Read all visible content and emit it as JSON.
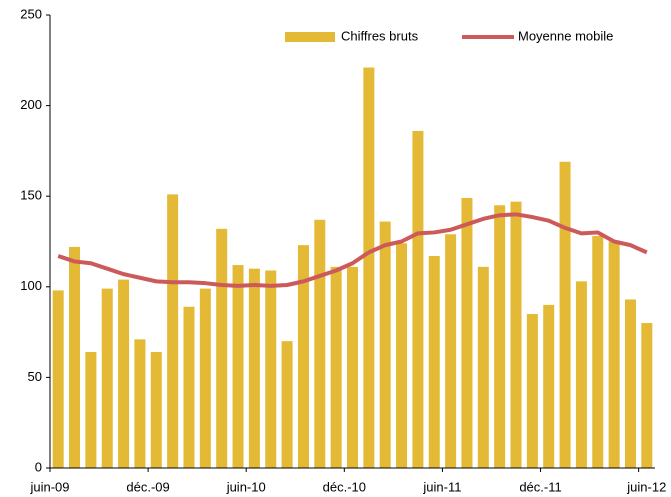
{
  "chart_data": {
    "type": "bar_line",
    "categories": [
      "juin-09",
      null,
      null,
      null,
      null,
      null,
      "déc.-09",
      null,
      null,
      null,
      null,
      null,
      "juin-10",
      null,
      null,
      null,
      null,
      null,
      "déc.-10",
      null,
      null,
      null,
      null,
      null,
      "juin-11",
      null,
      null,
      null,
      null,
      null,
      "déc.-11",
      null,
      null,
      null,
      null,
      null,
      "juin-12"
    ],
    "series": [
      {
        "name": "Chiffres bruts",
        "color": "#e3b935",
        "kind": "bar",
        "values": [
          98,
          122,
          64,
          99,
          104,
          71,
          64,
          151,
          89,
          99,
          132,
          112,
          110,
          109,
          70,
          123,
          137,
          111,
          111,
          221,
          136,
          124,
          186,
          117,
          129,
          149,
          111,
          145,
          147,
          85,
          90,
          169,
          103,
          128,
          125,
          93,
          80
        ]
      },
      {
        "name": "Moyenne mobile",
        "color": "#cd5a5a",
        "kind": "line",
        "values": [
          117,
          114,
          113,
          110,
          107,
          105,
          103,
          102.5,
          102.5,
          102,
          101,
          100.5,
          101,
          100.5,
          101,
          103,
          106,
          109,
          113,
          119,
          123,
          125,
          129.5,
          130,
          131.5,
          134.5,
          137.5,
          139.5,
          140,
          138.5,
          136.5,
          132.5,
          129.5,
          130,
          125,
          123,
          119
        ]
      }
    ],
    "ylim": [
      0,
      250
    ],
    "yticks": [
      0,
      50,
      100,
      150,
      200,
      250
    ],
    "legend": "top-right"
  }
}
